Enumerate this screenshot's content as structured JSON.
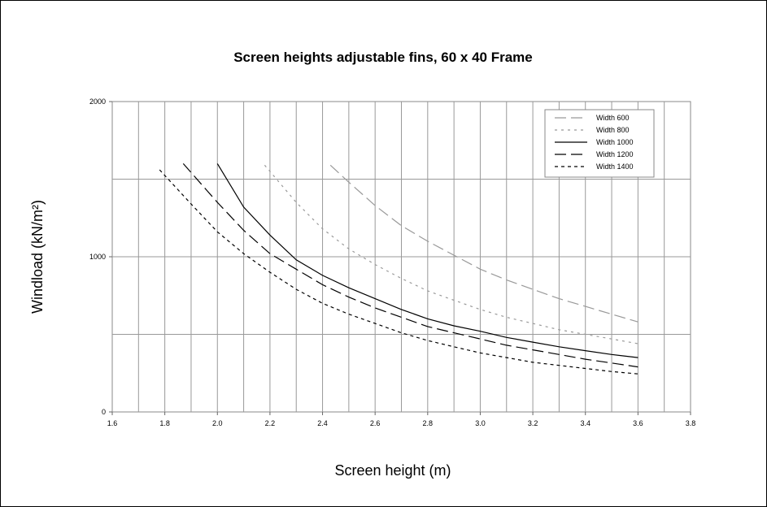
{
  "chart_data": {
    "type": "line",
    "title": "Screen heights adjustable fins, 60 x 40 Frame",
    "xlabel": "Screen height (m)",
    "ylabel": "Windload (kN/m²)",
    "xlim": [
      1.6,
      3.8
    ],
    "ylim": [
      0,
      2000
    ],
    "x_ticks": [
      "1.6",
      "1.8",
      "2.0",
      "2.2",
      "2.4",
      "2.6",
      "2.8",
      "3.0",
      "3.2",
      "3.4",
      "3.6",
      "3.8"
    ],
    "y_ticks": [
      "0",
      "1000",
      "2000"
    ],
    "grid": true,
    "legend_position": "top-right",
    "series": [
      {
        "name": "Width 600",
        "color": "#999999",
        "dash": "long-dash",
        "points": [
          [
            2.43,
            1590
          ],
          [
            2.5,
            1480
          ],
          [
            2.6,
            1330
          ],
          [
            2.7,
            1200
          ],
          [
            2.8,
            1100
          ],
          [
            2.9,
            1010
          ],
          [
            3.0,
            920
          ],
          [
            3.1,
            850
          ],
          [
            3.2,
            790
          ],
          [
            3.3,
            730
          ],
          [
            3.4,
            680
          ],
          [
            3.5,
            630
          ],
          [
            3.6,
            580
          ]
        ]
      },
      {
        "name": "Width 800",
        "color": "#999999",
        "dash": "dotted",
        "points": [
          [
            2.18,
            1590
          ],
          [
            2.3,
            1350
          ],
          [
            2.4,
            1180
          ],
          [
            2.5,
            1050
          ],
          [
            2.6,
            950
          ],
          [
            2.7,
            860
          ],
          [
            2.8,
            780
          ],
          [
            2.9,
            720
          ],
          [
            3.0,
            660
          ],
          [
            3.1,
            610
          ],
          [
            3.2,
            570
          ],
          [
            3.3,
            530
          ],
          [
            3.4,
            500
          ],
          [
            3.5,
            470
          ],
          [
            3.6,
            440
          ]
        ]
      },
      {
        "name": "Width 1000",
        "color": "#000000",
        "dash": "solid",
        "points": [
          [
            2.0,
            1600
          ],
          [
            2.1,
            1320
          ],
          [
            2.2,
            1140
          ],
          [
            2.3,
            980
          ],
          [
            2.4,
            880
          ],
          [
            2.5,
            800
          ],
          [
            2.6,
            730
          ],
          [
            2.7,
            660
          ],
          [
            2.8,
            600
          ],
          [
            2.9,
            555
          ],
          [
            3.0,
            520
          ],
          [
            3.1,
            480
          ],
          [
            3.2,
            450
          ],
          [
            3.3,
            420
          ],
          [
            3.4,
            395
          ],
          [
            3.5,
            370
          ],
          [
            3.6,
            350
          ]
        ]
      },
      {
        "name": "Width 1200",
        "color": "#000000",
        "dash": "long-dash",
        "points": [
          [
            1.87,
            1600
          ],
          [
            2.0,
            1350
          ],
          [
            2.1,
            1170
          ],
          [
            2.2,
            1020
          ],
          [
            2.3,
            920
          ],
          [
            2.4,
            820
          ],
          [
            2.5,
            740
          ],
          [
            2.6,
            670
          ],
          [
            2.7,
            610
          ],
          [
            2.8,
            550
          ],
          [
            2.9,
            510
          ],
          [
            3.0,
            470
          ],
          [
            3.1,
            430
          ],
          [
            3.2,
            400
          ],
          [
            3.3,
            370
          ],
          [
            3.4,
            340
          ],
          [
            3.5,
            315
          ],
          [
            3.6,
            290
          ]
        ]
      },
      {
        "name": "Width 1400",
        "color": "#000000",
        "dash": "short-dash",
        "points": [
          [
            1.78,
            1560
          ],
          [
            1.9,
            1340
          ],
          [
            2.0,
            1160
          ],
          [
            2.1,
            1020
          ],
          [
            2.2,
            900
          ],
          [
            2.3,
            790
          ],
          [
            2.4,
            700
          ],
          [
            2.5,
            630
          ],
          [
            2.6,
            570
          ],
          [
            2.7,
            510
          ],
          [
            2.8,
            460
          ],
          [
            2.9,
            420
          ],
          [
            3.0,
            380
          ],
          [
            3.1,
            350
          ],
          [
            3.2,
            320
          ],
          [
            3.3,
            300
          ],
          [
            3.4,
            280
          ],
          [
            3.5,
            260
          ],
          [
            3.6,
            245
          ]
        ]
      }
    ]
  }
}
